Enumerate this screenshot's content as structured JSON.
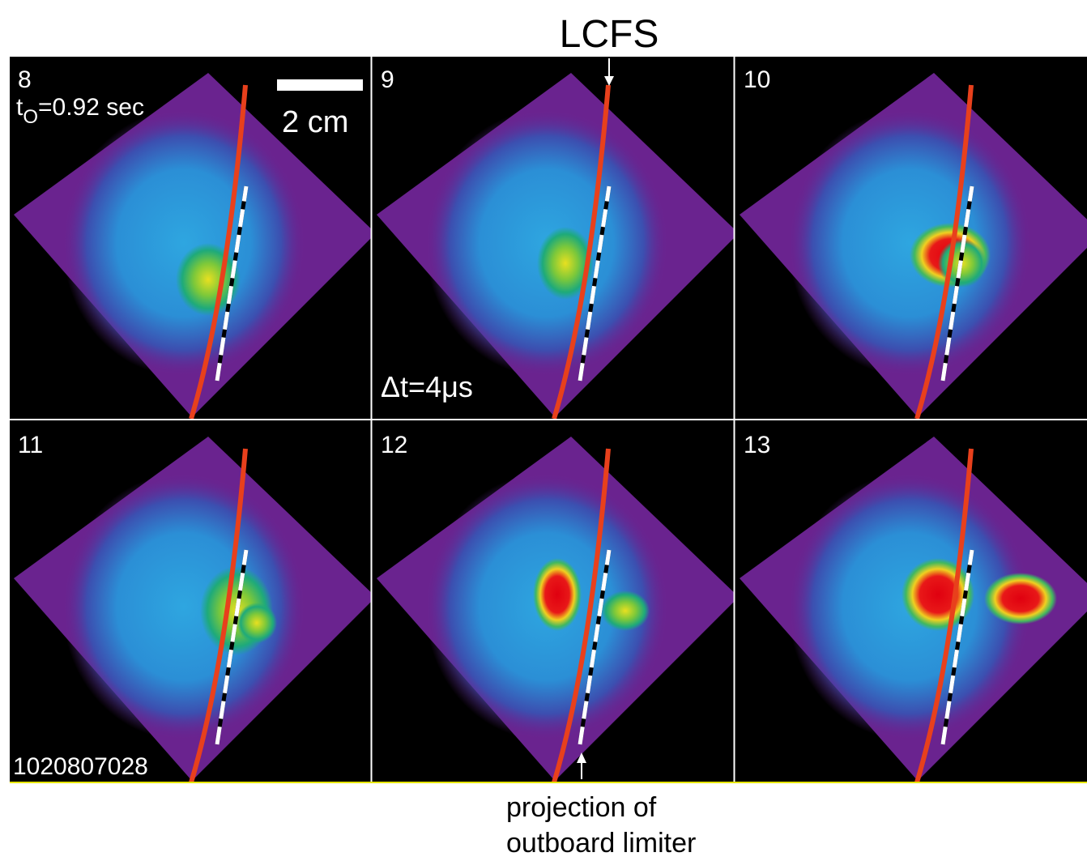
{
  "top_label": "LCFS",
  "panels": [
    {
      "label": "8"
    },
    {
      "label": "9"
    },
    {
      "label": "10"
    },
    {
      "label": "11"
    },
    {
      "label": "12"
    },
    {
      "label": "13"
    }
  ],
  "annotations": {
    "time_symbol": "t",
    "time_subscript": "O",
    "time_value": "=0.92 sec",
    "scale_bar": "2 cm",
    "delta_t": "Δt=4μs",
    "shot_number": "1020807028"
  },
  "bottom_label": [
    "projection of",
    "outboard limiter"
  ]
}
